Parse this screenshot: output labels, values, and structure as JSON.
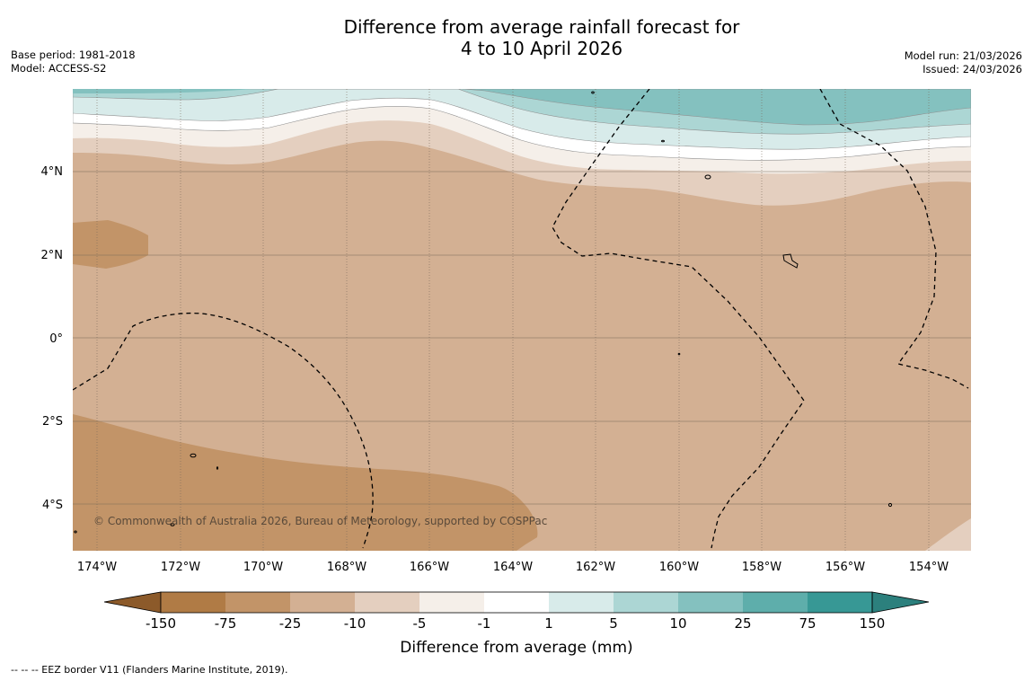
{
  "header": {
    "title_line1": "Difference from average rainfall forecast for",
    "title_line2": "4 to 10 April 2026",
    "base_period": "Base period: 1981-2018",
    "model": "Model: ACCESS-S2",
    "model_run": "Model run: 21/03/2026",
    "issued": "Issued: 24/03/2026"
  },
  "map": {
    "latitude_labels": [
      "4°N",
      "2°N",
      "0°",
      "2°S",
      "4°S"
    ],
    "longitude_labels": [
      "174°W",
      "172°W",
      "170°W",
      "168°W",
      "166°W",
      "164°W",
      "162°W",
      "160°W",
      "158°W",
      "156°W",
      "154°W"
    ],
    "copyright": "© Commonwealth of Australia 2026, Bureau of Meteorology, supported by COSPPac"
  },
  "colorbar": {
    "label": "Difference from average (mm)",
    "ticks": [
      "-150",
      "-75",
      "-25",
      "-10",
      "-5",
      "-1",
      "1",
      "5",
      "10",
      "25",
      "75",
      "150"
    ],
    "colors": {
      "extend_low": "#8c5a2a",
      "c1": "#b07b45",
      "c2": "#c29468",
      "c3": "#d3b093",
      "c4": "#e4cfbf",
      "c5": "#f5efe9",
      "c6": "#ffffff",
      "c7": "#d8ebea",
      "c8": "#acd6d4",
      "c9": "#84c1bf",
      "c10": "#5eaeab",
      "c11": "#379895",
      "extend_high": "#2c807d"
    }
  },
  "footnote": "--  --  -- EEZ border V11 (Flanders Marine Institute, 2019)."
}
